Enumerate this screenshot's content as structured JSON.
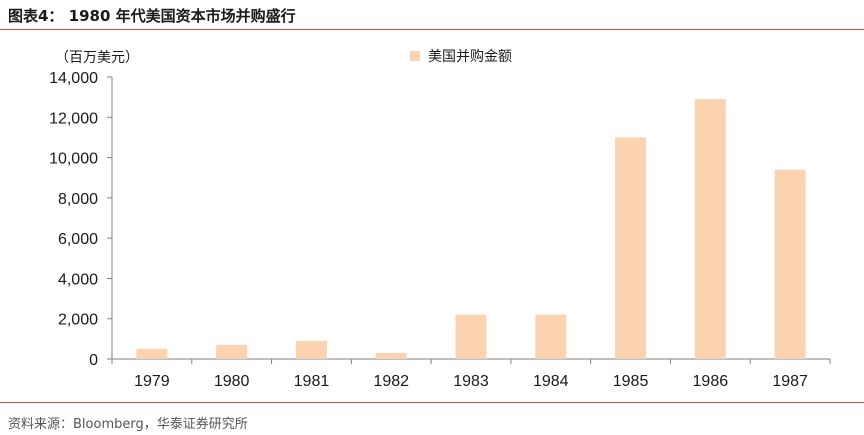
{
  "header": {
    "title": "图表4：  1980 年代美国资本市场并购盛行"
  },
  "footer": {
    "source": "资料来源：Bloomberg，华泰证券研究所"
  },
  "colors": {
    "bar": "#fbd3b0",
    "rule": "#c0504d",
    "axis": "#7f7f7f"
  },
  "chart_data": {
    "type": "bar",
    "title": "",
    "xlabel": "",
    "ylabel": "（百万美元）",
    "categories": [
      "1979",
      "1980",
      "1981",
      "1982",
      "1983",
      "1984",
      "1985",
      "1986",
      "1987"
    ],
    "series": [
      {
        "name": "美国并购金额",
        "values": [
          500,
          700,
          900,
          300,
          2200,
          2200,
          11000,
          12900,
          9400
        ]
      }
    ],
    "ylim": [
      0,
      14000
    ],
    "yticks": [
      0,
      2000,
      4000,
      6000,
      8000,
      10000,
      12000,
      14000
    ],
    "ytick_labels": [
      "0",
      "2,000",
      "4,000",
      "6,000",
      "8,000",
      "10,000",
      "12,000",
      "14,000"
    ],
    "legend_position": "top-center",
    "grid": false
  }
}
